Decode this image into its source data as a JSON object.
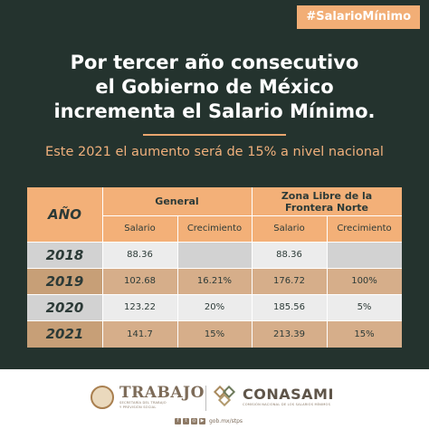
{
  "hashtag": "#SalarioMínimo",
  "title": {
    "line1": "Por tercer año consecutivo",
    "line2": "el Gobierno de México",
    "line3": "incrementa el Salario Mínimo."
  },
  "subtitle": "Este 2021 el aumento será de 15% a nivel nacional",
  "table": {
    "year_header": "AÑO",
    "group_general": "General",
    "group_zona_line1": "Zona Libre de la",
    "group_zona_line2": "Frontera Norte",
    "col_salario": "Salario",
    "col_crecimiento": "Crecimiento",
    "rows": [
      {
        "year": "2018",
        "gen_salario": "88.36",
        "gen_crec": "",
        "zona_salario": "88.36",
        "zona_crec": ""
      },
      {
        "year": "2019",
        "gen_salario": "102.68",
        "gen_crec": "16.21%",
        "zona_salario": "176.72",
        "zona_crec": "100%"
      },
      {
        "year": "2020",
        "gen_salario": "123.22",
        "gen_crec": "20%",
        "zona_salario": "185.56",
        "zona_crec": "5%"
      },
      {
        "year": "2021",
        "gen_salario": "141.7",
        "gen_crec": "15%",
        "zona_salario": "213.39",
        "zona_crec": "15%"
      }
    ]
  },
  "footer": {
    "trabajo_name": "TRABAJO",
    "trabajo_sub_line1": "SECRETARÍA DEL TRABAJO",
    "trabajo_sub_line2": "Y PREVISIÓN SOCIAL",
    "conasami_name": "CONASAMI",
    "conasami_sub": "COMISIÓN NACIONAL DE LOS SALARIOS MÍNIMOS",
    "social_text": "gob.mx/stps"
  },
  "colors": {
    "background": "#24332e",
    "accent": "#f3b078",
    "subtitle": "#f0b07c",
    "row_light": "#ececec",
    "row_tan": "#d6ae8a"
  },
  "icons": [
    "facebook-icon",
    "twitter-icon",
    "instagram-icon",
    "youtube-icon"
  ]
}
